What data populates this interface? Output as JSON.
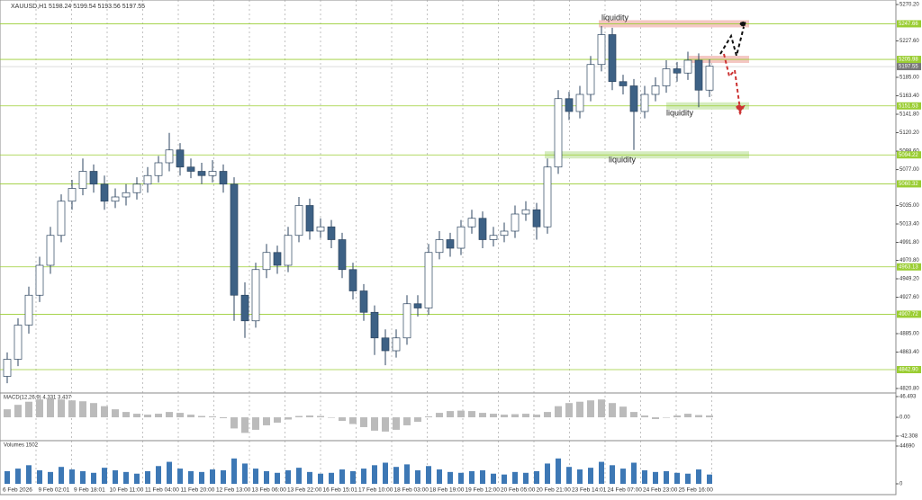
{
  "header": "XAUUSD,H1  5198.24 5199.54 5193.56 5197.55",
  "chart_data": {
    "type": "candlestick",
    "ylim": [
      4816.6,
      5275.5
    ],
    "yticks": [
      {
        "value": 5270.2,
        "label": "5270.20"
      },
      {
        "value": 5227.6,
        "label": "5227.60"
      },
      {
        "value": 5185,
        "label": "5185.00"
      },
      {
        "value": 5163.4,
        "label": "5163.40"
      },
      {
        "value": 5141.8,
        "label": "5141.80"
      },
      {
        "value": 5120.2,
        "label": "5120.20"
      },
      {
        "value": 5098.6,
        "label": "5098.60"
      },
      {
        "value": 5077,
        "label": "5077.00"
      },
      {
        "value": 5035,
        "label": "5035.00"
      },
      {
        "value": 5013.4,
        "label": "5013.40"
      },
      {
        "value": 4991.8,
        "label": "4991.80"
      },
      {
        "value": 4970.8,
        "label": "4970.80"
      },
      {
        "value": 4949.2,
        "label": "4949.20"
      },
      {
        "value": 4927.6,
        "label": "4927.60"
      },
      {
        "value": 4885,
        "label": "4885.00"
      },
      {
        "value": 4863.4,
        "label": "4863.40"
      },
      {
        "value": 4820.8,
        "label": "4820.80"
      }
    ],
    "levels": [
      5247.66,
      5205.98,
      5151.53,
      5094.22,
      5060.32,
      4963.13,
      4907.72,
      {
        "value": 4842.9,
        "label": "4842.90"
      }
    ],
    "current_price": 5197.55,
    "x_labels": [
      "6 Feb 2026",
      "9 Feb 02:01",
      "9 Feb 18:01",
      "10 Feb 11:00",
      "11 Feb 04:00",
      "11 Feb 20:00",
      "12 Feb 13:00",
      "13 Feb 06:00",
      "13 Feb 22:00",
      "16 Feb 15:01",
      "17 Feb 10:00",
      "18 Feb 03:00",
      "18 Feb 19:00",
      "19 Feb 12:00",
      "20 Feb 05:00",
      "20 Feb 21:00",
      "23 Feb 14:01",
      "24 Feb 07:00",
      "24 Feb 23:00",
      "25 Feb 16:00"
    ],
    "annotations": [
      "liquidity",
      "liquidity",
      "liquidity"
    ],
    "candles": [
      [
        4835,
        4863,
        4827,
        4855
      ],
      [
        4855,
        4903,
        4847,
        4895
      ],
      [
        4895,
        4940,
        4885,
        4930
      ],
      [
        4930,
        4975,
        4922,
        4965
      ],
      [
        4965,
        5010,
        4955,
        5000
      ],
      [
        5000,
        5048,
        4992,
        5040
      ],
      [
        5040,
        5065,
        5030,
        5055
      ],
      [
        5055,
        5090,
        5047,
        5075
      ],
      [
        5075,
        5083,
        5050,
        5060
      ],
      [
        5060,
        5070,
        5030,
        5040
      ],
      [
        5040,
        5055,
        5032,
        5045
      ],
      [
        5045,
        5060,
        5035,
        5050
      ],
      [
        5050,
        5068,
        5042,
        5060
      ],
      [
        5060,
        5080,
        5050,
        5070
      ],
      [
        5070,
        5093,
        5062,
        5085
      ],
      [
        5085,
        5120,
        5075,
        5100
      ],
      [
        5100,
        5108,
        5070,
        5080
      ],
      [
        5080,
        5090,
        5067,
        5075
      ],
      [
        5075,
        5085,
        5060,
        5070
      ],
      [
        5070,
        5088,
        5062,
        5075
      ],
      [
        5075,
        5083,
        5050,
        5060
      ],
      [
        5060,
        5068,
        4900,
        4930
      ],
      [
        4930,
        4945,
        4880,
        4900
      ],
      [
        4900,
        4968,
        4892,
        4960
      ],
      [
        4960,
        4990,
        4950,
        4980
      ],
      [
        4980,
        4988,
        4955,
        4965
      ],
      [
        4965,
        5010,
        4957,
        5000
      ],
      [
        5000,
        5045,
        4992,
        5035
      ],
      [
        5035,
        5043,
        4995,
        5005
      ],
      [
        5005,
        5020,
        4997,
        5010
      ],
      [
        5010,
        5018,
        4985,
        4995
      ],
      [
        4995,
        5003,
        4950,
        4960
      ],
      [
        4960,
        4968,
        4925,
        4935
      ],
      [
        4935,
        4943,
        4900,
        4910
      ],
      [
        4910,
        4918,
        4860,
        4880
      ],
      [
        4880,
        4890,
        4848,
        4865
      ],
      [
        4865,
        4890,
        4857,
        4880
      ],
      [
        4880,
        4930,
        4872,
        4920
      ],
      [
        4920,
        4930,
        4905,
        4915
      ],
      [
        4915,
        4990,
        4907,
        4980
      ],
      [
        4980,
        5005,
        4972,
        4995
      ],
      [
        4995,
        5003,
        4975,
        4985
      ],
      [
        4985,
        5018,
        4977,
        5010
      ],
      [
        5010,
        5030,
        5002,
        5020
      ],
      [
        5020,
        5028,
        4985,
        4995
      ],
      [
        4995,
        5010,
        4987,
        5000
      ],
      [
        5000,
        5015,
        4992,
        5005
      ],
      [
        5005,
        5035,
        4997,
        5025
      ],
      [
        5025,
        5040,
        5017,
        5030
      ],
      [
        5030,
        5038,
        4995,
        5010
      ],
      [
        5010,
        5090,
        5002,
        5080
      ],
      [
        5080,
        5170,
        5072,
        5160
      ],
      [
        5160,
        5168,
        5135,
        5145
      ],
      [
        5145,
        5175,
        5137,
        5165
      ],
      [
        5165,
        5210,
        5157,
        5200
      ],
      [
        5200,
        5245,
        5192,
        5235
      ],
      [
        5235,
        5243,
        5170,
        5180
      ],
      [
        5180,
        5188,
        5165,
        5175
      ],
      [
        5175,
        5183,
        5100,
        5145
      ],
      [
        5145,
        5175,
        5137,
        5165
      ],
      [
        5165,
        5185,
        5157,
        5175
      ],
      [
        5175,
        5205,
        5167,
        5195
      ],
      [
        5195,
        5203,
        5180,
        5190
      ],
      [
        5190,
        5215,
        5182,
        5205
      ],
      [
        5205,
        5213,
        5150,
        5170
      ],
      [
        5170,
        5206,
        5162,
        5198
      ]
    ],
    "macd": {
      "label": "MACD(12,26,9) 4.331 3.437",
      "ylim": [
        -52.4,
        54.6
      ],
      "yticks": [
        46.493,
        {
          "value": 0,
          "label": "0.00"
        },
        -42.308
      ],
      "values": [
        18,
        28,
        35,
        40,
        42,
        40,
        38,
        36,
        32,
        25,
        18,
        12,
        8,
        6,
        8,
        12,
        10,
        6,
        3,
        2,
        -2,
        -25,
        -35,
        -28,
        -18,
        -12,
        -5,
        3,
        4,
        3,
        0,
        -8,
        -15,
        -22,
        -30,
        -32,
        -28,
        -18,
        -10,
        2,
        10,
        14,
        15,
        14,
        10,
        8,
        6,
        7,
        8,
        6,
        12,
        25,
        32,
        35,
        38,
        40,
        32,
        24,
        12,
        4,
        -4,
        0,
        4,
        8,
        5,
        4
      ]
    },
    "volumes": {
      "label": "Volumes 1502",
      "ylim": [
        0,
        50000
      ],
      "yticks": [
        44690,
        0
      ],
      "values": [
        15000,
        18000,
        22000,
        16000,
        14000,
        20000,
        17000,
        15000,
        13000,
        19000,
        16000,
        14000,
        12000,
        15000,
        21000,
        26000,
        18000,
        15000,
        14000,
        17000,
        16000,
        30000,
        24000,
        18000,
        15000,
        13000,
        16000,
        19000,
        14000,
        12000,
        13000,
        17000,
        15000,
        18000,
        22000,
        25000,
        20000,
        23000,
        16000,
        21000,
        17000,
        14000,
        13000,
        15000,
        16000,
        12000,
        11000,
        14000,
        13000,
        15000,
        24000,
        30000,
        20000,
        17000,
        19000,
        26000,
        22000,
        18000,
        25000,
        16000,
        14000,
        15000,
        13000,
        12000,
        17000,
        11000
      ]
    }
  }
}
